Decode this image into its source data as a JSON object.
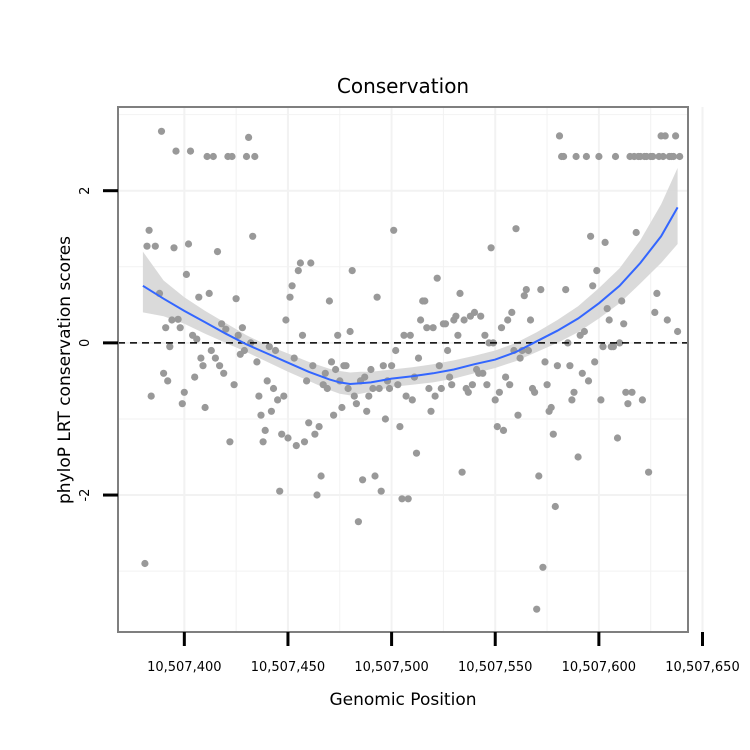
{
  "chart_data": {
    "type": "scatter",
    "title": "Conservation",
    "xlabel": "Genomic Position",
    "ylabel": "phyloP LRT conservation scores",
    "xlim": [
      10507368,
      10507643
    ],
    "ylim": [
      -3.8,
      3.1
    ],
    "xticks": [
      10507400,
      10507450,
      10507500,
      10507550,
      10507600,
      10507650
    ],
    "xtick_labels": [
      "10,507,400",
      "10,507,450",
      "10,507,500",
      "10,507,550",
      "10,507,600",
      "10,507,650"
    ],
    "yticks": [
      -2,
      0,
      2
    ],
    "ytick_labels": [
      "-2",
      "0",
      "2"
    ],
    "reference_line": {
      "y": 0,
      "style": "dashed"
    },
    "colors": {
      "points": "#999999",
      "smooth": "#3366ff",
      "band": "#d6d6d6",
      "panel_border": "#7f7f7f",
      "grid": "#f2f2f2"
    },
    "points": [
      [
        10507381,
        -2.9
      ],
      [
        10507382,
        1.27
      ],
      [
        10507383,
        1.48
      ],
      [
        10507384,
        -0.7
      ],
      [
        10507386,
        1.27
      ],
      [
        10507388,
        0.65
      ],
      [
        10507389,
        2.78
      ],
      [
        10507390,
        -0.4
      ],
      [
        10507391,
        0.2
      ],
      [
        10507392,
        -0.5
      ],
      [
        10507393,
        -0.05
      ],
      [
        10507394,
        0.3
      ],
      [
        10507395,
        1.25
      ],
      [
        10507396,
        2.52
      ],
      [
        10507397,
        0.31
      ],
      [
        10507398,
        0.2
      ],
      [
        10507399,
        -0.8
      ],
      [
        10507400,
        -0.65
      ],
      [
        10507401,
        0.9
      ],
      [
        10507402,
        1.3
      ],
      [
        10507403,
        2.52
      ],
      [
        10507404,
        0.1
      ],
      [
        10507405,
        -0.45
      ],
      [
        10507406,
        0.05
      ],
      [
        10507407,
        0.6
      ],
      [
        10507408,
        -0.2
      ],
      [
        10507409,
        -0.3
      ],
      [
        10507410,
        -0.85
      ],
      [
        10507411,
        2.45
      ],
      [
        10507412,
        0.65
      ],
      [
        10507413,
        -0.1
      ],
      [
        10507414,
        2.45
      ],
      [
        10507415,
        -0.2
      ],
      [
        10507416,
        1.2
      ],
      [
        10507417,
        -0.3
      ],
      [
        10507418,
        0.25
      ],
      [
        10507419,
        -0.4
      ],
      [
        10507420,
        0.18
      ],
      [
        10507421,
        2.45
      ],
      [
        10507422,
        -1.3
      ],
      [
        10507423,
        2.45
      ],
      [
        10507424,
        -0.55
      ],
      [
        10507425,
        0.58
      ],
      [
        10507426,
        0.1
      ],
      [
        10507427,
        -0.15
      ],
      [
        10507428,
        0.2
      ],
      [
        10507429,
        -0.1
      ],
      [
        10507430,
        2.45
      ],
      [
        10507431,
        2.7
      ],
      [
        10507432,
        0.0
      ],
      [
        10507433,
        1.4
      ],
      [
        10507434,
        2.45
      ],
      [
        10507435,
        -0.25
      ],
      [
        10507436,
        -0.7
      ],
      [
        10507437,
        -0.95
      ],
      [
        10507438,
        -1.3
      ],
      [
        10507439,
        -1.15
      ],
      [
        10507440,
        -0.5
      ],
      [
        10507441,
        -0.05
      ],
      [
        10507442,
        -0.9
      ],
      [
        10507443,
        -0.6
      ],
      [
        10507444,
        -0.1
      ],
      [
        10507445,
        -0.75
      ],
      [
        10507446,
        -1.95
      ],
      [
        10507447,
        -1.2
      ],
      [
        10507448,
        -0.7
      ],
      [
        10507449,
        0.3
      ],
      [
        10507450,
        -1.25
      ],
      [
        10507451,
        0.6
      ],
      [
        10507452,
        0.75
      ],
      [
        10507453,
        -0.2
      ],
      [
        10507454,
        -1.35
      ],
      [
        10507455,
        0.95
      ],
      [
        10507456,
        1.05
      ],
      [
        10507457,
        0.1
      ],
      [
        10507458,
        -1.3
      ],
      [
        10507459,
        -0.5
      ],
      [
        10507460,
        -1.05
      ],
      [
        10507461,
        1.05
      ],
      [
        10507462,
        -0.3
      ],
      [
        10507463,
        -1.2
      ],
      [
        10507464,
        -2.0
      ],
      [
        10507465,
        -1.1
      ],
      [
        10507466,
        -1.75
      ],
      [
        10507467,
        -0.55
      ],
      [
        10507468,
        -0.4
      ],
      [
        10507469,
        -0.6
      ],
      [
        10507470,
        0.55
      ],
      [
        10507471,
        -0.25
      ],
      [
        10507472,
        -0.95
      ],
      [
        10507473,
        -0.35
      ],
      [
        10507474,
        0.1
      ],
      [
        10507475,
        -0.5
      ],
      [
        10507476,
        -0.85
      ],
      [
        10507477,
        -0.3
      ],
      [
        10507478,
        -0.3
      ],
      [
        10507479,
        -0.6
      ],
      [
        10507480,
        0.15
      ],
      [
        10507481,
        0.95
      ],
      [
        10507482,
        -0.7
      ],
      [
        10507483,
        -0.8
      ],
      [
        10507484,
        -2.35
      ],
      [
        10507485,
        -0.5
      ],
      [
        10507486,
        -1.8
      ],
      [
        10507487,
        -0.45
      ],
      [
        10507488,
        -0.9
      ],
      [
        10507489,
        -0.7
      ],
      [
        10507490,
        -0.35
      ],
      [
        10507491,
        -0.6
      ],
      [
        10507492,
        -1.75
      ],
      [
        10507493,
        0.6
      ],
      [
        10507494,
        -0.6
      ],
      [
        10507495,
        -1.95
      ],
      [
        10507496,
        -0.3
      ],
      [
        10507497,
        -1.0
      ],
      [
        10507498,
        -0.5
      ],
      [
        10507499,
        -0.6
      ],
      [
        10507500,
        -0.3
      ],
      [
        10507501,
        1.48
      ],
      [
        10507502,
        -0.1
      ],
      [
        10507503,
        -0.55
      ],
      [
        10507504,
        -1.1
      ],
      [
        10507505,
        -2.05
      ],
      [
        10507506,
        0.1
      ],
      [
        10507507,
        -0.7
      ],
      [
        10507508,
        -2.05
      ],
      [
        10507509,
        0.1
      ],
      [
        10507510,
        -0.75
      ],
      [
        10507511,
        -0.45
      ],
      [
        10507512,
        -1.45
      ],
      [
        10507513,
        -0.2
      ],
      [
        10507514,
        0.3
      ],
      [
        10507515,
        0.55
      ],
      [
        10507516,
        0.55
      ],
      [
        10507517,
        0.2
      ],
      [
        10507518,
        -0.6
      ],
      [
        10507519,
        -0.9
      ],
      [
        10507520,
        0.2
      ],
      [
        10507521,
        -0.7
      ],
      [
        10507522,
        0.85
      ],
      [
        10507523,
        -0.3
      ],
      [
        10507524,
        -0.6
      ],
      [
        10507525,
        0.25
      ],
      [
        10507526,
        0.25
      ],
      [
        10507527,
        -0.1
      ],
      [
        10507528,
        -0.45
      ],
      [
        10507529,
        -0.55
      ],
      [
        10507530,
        0.3
      ],
      [
        10507531,
        0.35
      ],
      [
        10507532,
        0.1
      ],
      [
        10507533,
        0.65
      ],
      [
        10507534,
        -1.7
      ],
      [
        10507535,
        0.3
      ],
      [
        10507536,
        -0.6
      ],
      [
        10507537,
        -0.65
      ],
      [
        10507538,
        0.35
      ],
      [
        10507539,
        -0.55
      ],
      [
        10507540,
        0.4
      ],
      [
        10507541,
        -0.35
      ],
      [
        10507542,
        -0.4
      ],
      [
        10507543,
        0.35
      ],
      [
        10507544,
        -0.4
      ],
      [
        10507545,
        0.1
      ],
      [
        10507546,
        -0.55
      ],
      [
        10507547,
        0.0
      ],
      [
        10507548,
        1.25
      ],
      [
        10507549,
        0.0
      ],
      [
        10507550,
        -0.75
      ],
      [
        10507551,
        -1.1
      ],
      [
        10507552,
        -0.65
      ],
      [
        10507553,
        0.2
      ],
      [
        10507554,
        -1.15
      ],
      [
        10507555,
        -0.45
      ],
      [
        10507556,
        0.3
      ],
      [
        10507557,
        -0.55
      ],
      [
        10507558,
        0.4
      ],
      [
        10507559,
        -0.1
      ],
      [
        10507560,
        1.5
      ],
      [
        10507561,
        -0.95
      ],
      [
        10507562,
        -0.2
      ],
      [
        10507563,
        -0.1
      ],
      [
        10507564,
        0.62
      ],
      [
        10507565,
        0.7
      ],
      [
        10507566,
        -0.1
      ],
      [
        10507567,
        0.3
      ],
      [
        10507568,
        -0.6
      ],
      [
        10507569,
        -0.65
      ],
      [
        10507570,
        -3.5
      ],
      [
        10507571,
        -1.75
      ],
      [
        10507572,
        0.7
      ],
      [
        10507573,
        -2.95
      ],
      [
        10507574,
        -0.25
      ],
      [
        10507575,
        -0.55
      ],
      [
        10507576,
        -0.9
      ],
      [
        10507577,
        -0.85
      ],
      [
        10507578,
        -1.2
      ],
      [
        10507579,
        -2.15
      ],
      [
        10507580,
        -0.3
      ],
      [
        10507581,
        2.72
      ],
      [
        10507582,
        2.45
      ],
      [
        10507583,
        2.45
      ],
      [
        10507584,
        0.7
      ],
      [
        10507585,
        0.0
      ],
      [
        10507586,
        -0.3
      ],
      [
        10507587,
        -0.75
      ],
      [
        10507588,
        -0.65
      ],
      [
        10507589,
        2.45
      ],
      [
        10507590,
        -1.5
      ],
      [
        10507591,
        0.1
      ],
      [
        10507592,
        -0.4
      ],
      [
        10507593,
        0.15
      ],
      [
        10507594,
        2.45
      ],
      [
        10507595,
        -0.5
      ],
      [
        10507596,
        1.4
      ],
      [
        10507597,
        0.75
      ],
      [
        10507598,
        -0.25
      ],
      [
        10507599,
        0.95
      ],
      [
        10507600,
        2.45
      ],
      [
        10507601,
        -0.75
      ],
      [
        10507602,
        -0.05
      ],
      [
        10507603,
        1.32
      ],
      [
        10507604,
        0.45
      ],
      [
        10507605,
        0.3
      ],
      [
        10507606,
        -0.05
      ],
      [
        10507607,
        -0.05
      ],
      [
        10507608,
        2.45
      ],
      [
        10507609,
        -1.25
      ],
      [
        10507610,
        0.0
      ],
      [
        10507611,
        0.55
      ],
      [
        10507612,
        0.25
      ],
      [
        10507613,
        -0.65
      ],
      [
        10507614,
        -0.8
      ],
      [
        10507615,
        2.45
      ],
      [
        10507616,
        -0.65
      ],
      [
        10507617,
        2.45
      ],
      [
        10507618,
        1.45
      ],
      [
        10507619,
        2.45
      ],
      [
        10507620,
        2.45
      ],
      [
        10507621,
        -0.75
      ],
      [
        10507622,
        2.45
      ],
      [
        10507623,
        2.45
      ],
      [
        10507624,
        -1.7
      ],
      [
        10507625,
        2.45
      ],
      [
        10507626,
        2.45
      ],
      [
        10507627,
        0.4
      ],
      [
        10507628,
        0.65
      ],
      [
        10507629,
        2.45
      ],
      [
        10507630,
        2.72
      ],
      [
        10507631,
        2.45
      ],
      [
        10507632,
        2.72
      ],
      [
        10507633,
        0.3
      ],
      [
        10507634,
        2.45
      ],
      [
        10507635,
        2.45
      ],
      [
        10507636,
        2.45
      ],
      [
        10507637,
        2.72
      ],
      [
        10507638,
        0.15
      ],
      [
        10507639,
        2.45
      ]
    ],
    "smooth": {
      "x": [
        10507380,
        10507390,
        10507400,
        10507410,
        10507420,
        10507430,
        10507440,
        10507450,
        10507460,
        10507470,
        10507475,
        10507480,
        10507485,
        10507490,
        10507500,
        10507510,
        10507520,
        10507530,
        10507540,
        10507550,
        10507560,
        10507570,
        10507580,
        10507590,
        10507600,
        10507610,
        10507620,
        10507630,
        10507638
      ],
      "y": [
        0.75,
        0.58,
        0.42,
        0.27,
        0.12,
        -0.02,
        -0.14,
        -0.26,
        -0.38,
        -0.48,
        -0.52,
        -0.54,
        -0.53,
        -0.52,
        -0.47,
        -0.44,
        -0.4,
        -0.35,
        -0.28,
        -0.22,
        -0.12,
        0.02,
        0.16,
        0.32,
        0.52,
        0.75,
        1.05,
        1.4,
        1.78
      ],
      "se_lower": [
        0.4,
        0.35,
        0.25,
        0.12,
        0.0,
        -0.12,
        -0.25,
        -0.38,
        -0.5,
        -0.62,
        -0.67,
        -0.69,
        -0.67,
        -0.64,
        -0.58,
        -0.55,
        -0.52,
        -0.47,
        -0.4,
        -0.33,
        -0.24,
        -0.12,
        0.0,
        0.14,
        0.32,
        0.52,
        0.78,
        1.05,
        1.3
      ],
      "se_upper": [
        1.2,
        0.82,
        0.6,
        0.42,
        0.26,
        0.1,
        -0.03,
        -0.14,
        -0.25,
        -0.34,
        -0.37,
        -0.39,
        -0.38,
        -0.38,
        -0.35,
        -0.32,
        -0.28,
        -0.23,
        -0.17,
        -0.1,
        0.0,
        0.14,
        0.3,
        0.48,
        0.72,
        0.98,
        1.35,
        1.82,
        2.3
      ]
    }
  }
}
